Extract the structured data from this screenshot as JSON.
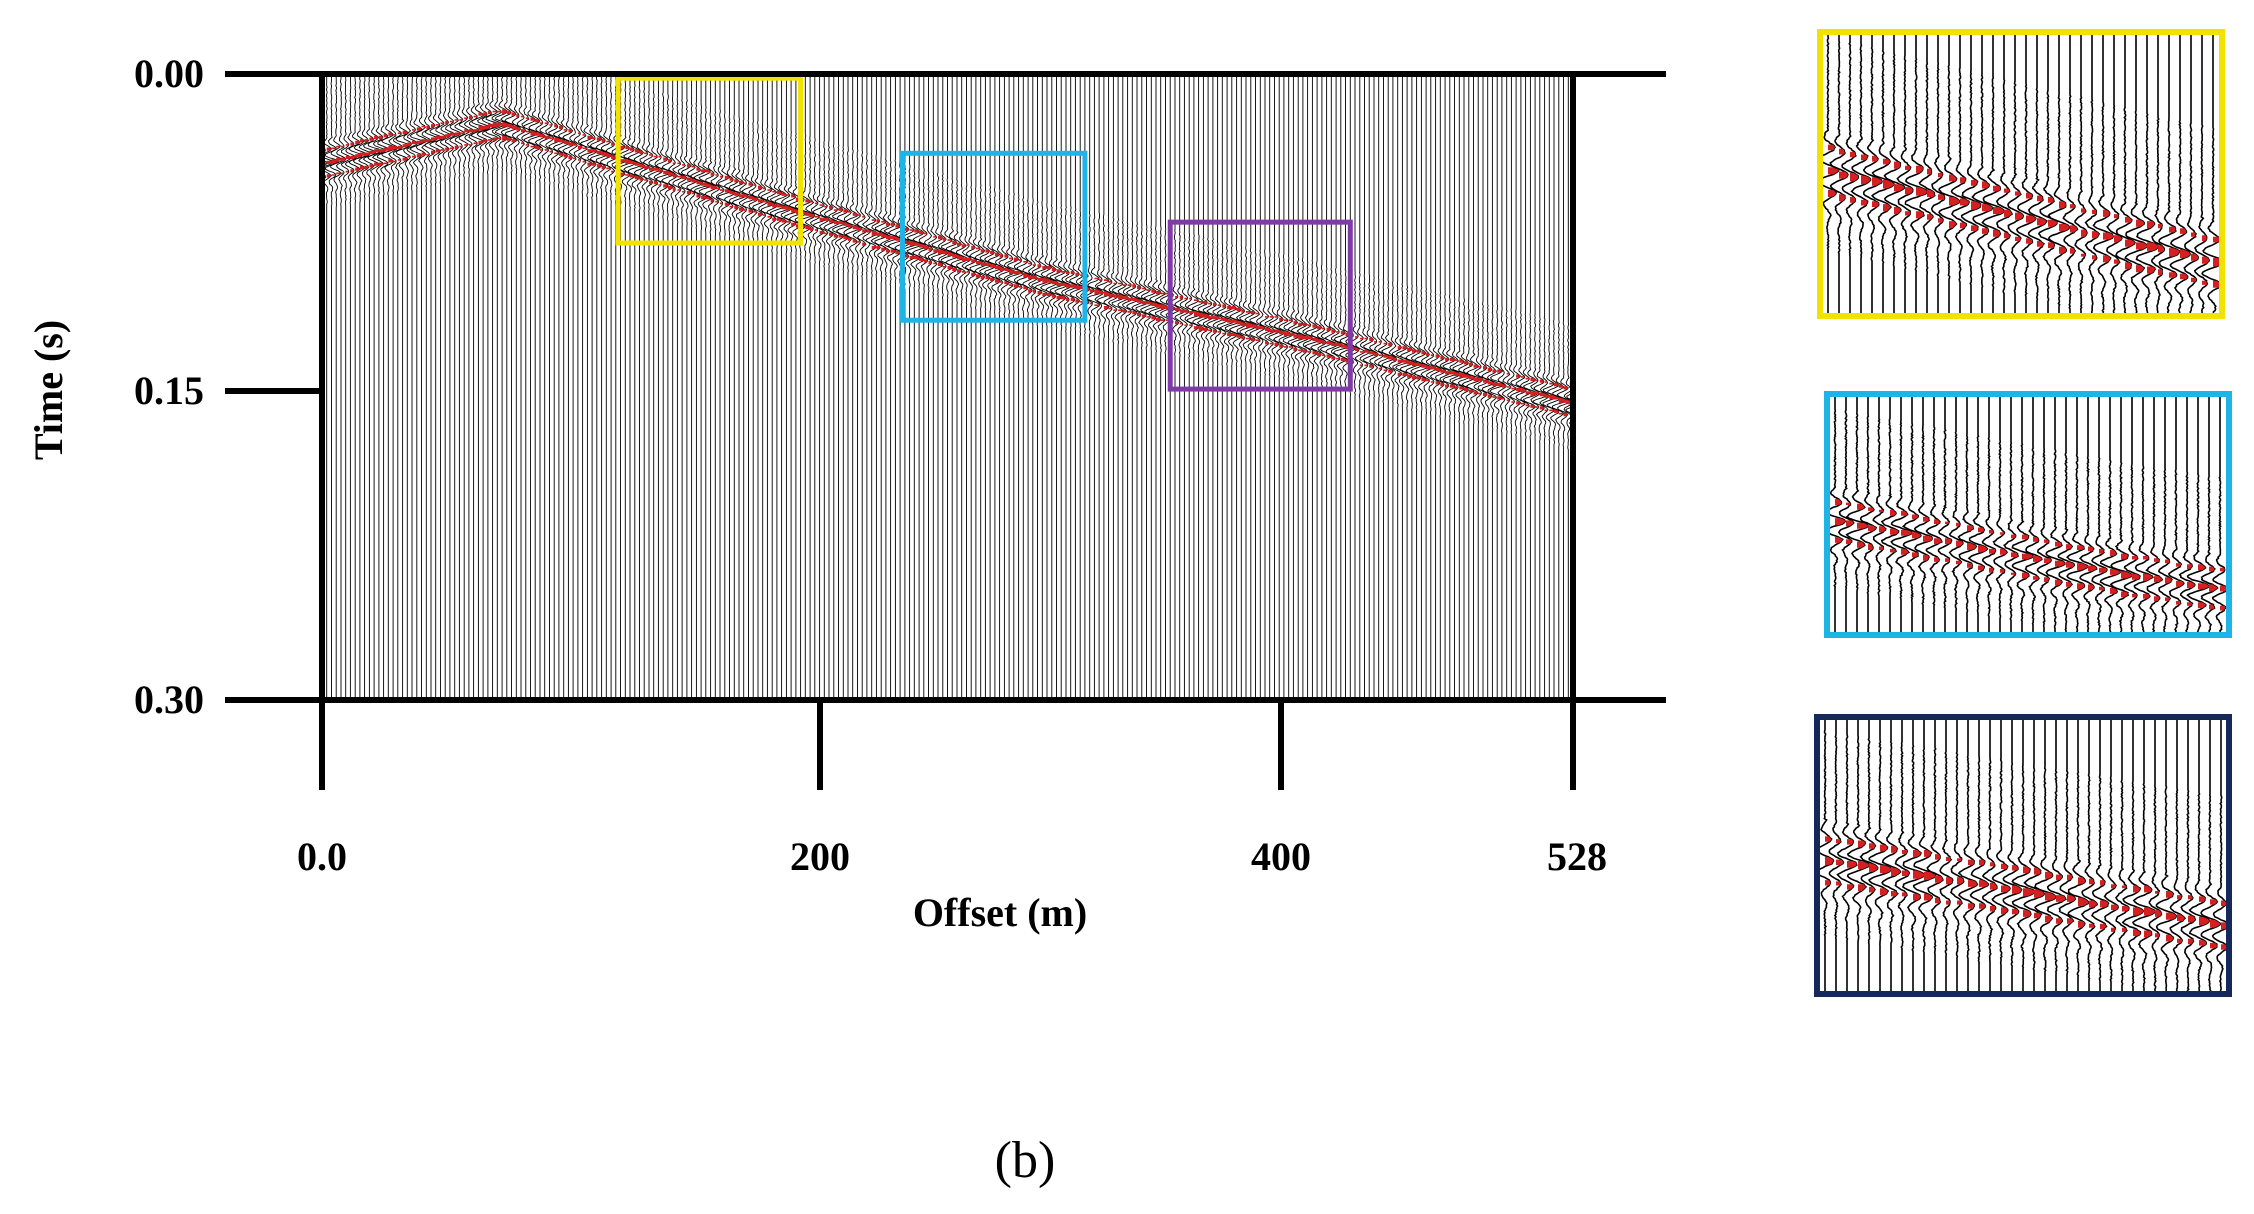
{
  "chart_data": {
    "type": "seismic-wiggle",
    "caption": "(b)",
    "xlabel": "Offset (m)",
    "ylabel": "Time (s)",
    "xlim": [
      0,
      528
    ],
    "ylim": [
      0,
      0.3
    ],
    "y_inverted": true,
    "x_ticks": [
      {
        "value": 0,
        "label": "0.0"
      },
      {
        "value": 200,
        "label": "200"
      },
      {
        "value": 400,
        "label": "400"
      },
      {
        "value": 528,
        "label": "528"
      }
    ],
    "y_ticks": [
      {
        "value": 0.0,
        "label": "0.00"
      },
      {
        "value": 0.15,
        "label": "0.15"
      },
      {
        "value": 0.3,
        "label": "0.30"
      }
    ],
    "trace_spacing_m": 2,
    "positive_fill_color": "#d42020",
    "trace_color": "#000000",
    "first_arrival_picks": [
      {
        "offset": 0,
        "time": 0.035
      },
      {
        "offset": 75,
        "time": 0.016
      },
      {
        "offset": 190,
        "time": 0.055
      },
      {
        "offset": 300,
        "time": 0.09
      },
      {
        "offset": 420,
        "time": 0.12
      },
      {
        "offset": 528,
        "time": 0.15
      }
    ],
    "highlight_boxes": [
      {
        "color": "#f2e200",
        "offset_range": [
          125,
          202
        ],
        "time_range": [
          0.002,
          0.081
        ]
      },
      {
        "color": "#1fb4e6",
        "offset_range": [
          245,
          322
        ],
        "time_range": [
          0.038,
          0.118
        ]
      },
      {
        "color": "#7f3aa8",
        "offset_range": [
          358,
          434
        ],
        "time_range": [
          0.071,
          0.151
        ]
      }
    ],
    "insets": [
      {
        "border_color": "#f2e200"
      },
      {
        "border_color": "#1fb4e6"
      },
      {
        "border_color": "#14285a"
      }
    ]
  }
}
